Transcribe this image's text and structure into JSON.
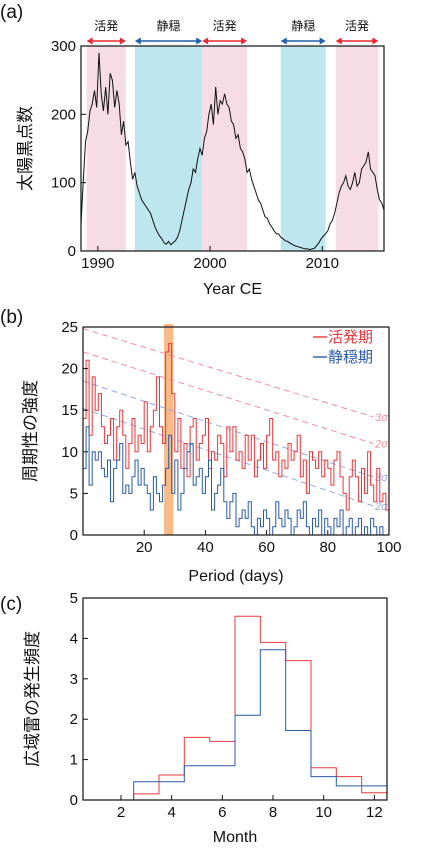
{
  "chart_data": [
    {
      "panel_label": "(a)",
      "type": "line",
      "xlabel": "Year CE",
      "ylabel": "太陽黒点数",
      "xlim": [
        1988.5,
        2015.5
      ],
      "ylim": [
        0,
        300
      ],
      "xticks": [
        1990,
        2000,
        2010
      ],
      "yticks": [
        0,
        100,
        200,
        300
      ],
      "tick_labels_x": [
        "1990",
        "2000",
        "2010"
      ],
      "tick_labels_y": [
        "0",
        "100",
        "200",
        "300"
      ],
      "series": [
        {
          "x": [
            1988.5,
            1988.7,
            1988.9,
            1989.1,
            1989.3,
            1989.5,
            1989.7,
            1989.9,
            1990.1,
            1990.3,
            1990.5,
            1990.7,
            1990.9,
            1991.1,
            1991.3,
            1991.5,
            1991.7,
            1991.9,
            1992.1,
            1992.3,
            1992.5,
            1992.7,
            1992.9,
            1993.1,
            1993.3,
            1993.5,
            1993.7,
            1993.9,
            1994.1,
            1994.3,
            1994.5,
            1994.7,
            1994.9,
            1995.1,
            1995.3,
            1995.5,
            1995.7,
            1995.9,
            1996.1,
            1996.3,
            1996.5,
            1996.7,
            1996.9,
            1997.1,
            1997.3,
            1997.5,
            1997.7,
            1997.9,
            1998.1,
            1998.3,
            1998.5,
            1998.7,
            1998.9,
            1999.1,
            1999.3,
            1999.5,
            1999.7,
            1999.9,
            2000.1,
            2000.3,
            2000.5,
            2000.7,
            2000.9,
            2001.1,
            2001.3,
            2001.5,
            2001.7,
            2001.9,
            2002.1,
            2002.3,
            2002.5,
            2002.7,
            2002.9,
            2003.1,
            2003.3,
            2003.5,
            2003.7,
            2003.9,
            2004.1,
            2004.3,
            2004.5,
            2004.7,
            2004.9,
            2005.1,
            2005.3,
            2005.5,
            2005.7,
            2005.9,
            2006.1,
            2006.3,
            2006.5,
            2006.7,
            2006.9,
            2007.1,
            2007.3,
            2007.5,
            2007.7,
            2007.9,
            2008.1,
            2008.3,
            2008.5,
            2008.7,
            2008.9,
            2009.1,
            2009.3,
            2009.5,
            2009.7,
            2009.9,
            2010.1,
            2010.3,
            2010.5,
            2010.7,
            2010.9,
            2011.1,
            2011.3,
            2011.5,
            2011.7,
            2011.9,
            2012.1,
            2012.3,
            2012.5,
            2012.7,
            2012.9,
            2013.1,
            2013.3,
            2013.5,
            2013.7,
            2013.9,
            2014.1,
            2014.3,
            2014.5,
            2014.7,
            2014.9,
            2015.1,
            2015.3,
            2015.5
          ],
          "values": [
            40,
            100,
            160,
            175,
            205,
            215,
            235,
            210,
            290,
            230,
            205,
            240,
            200,
            260,
            250,
            210,
            235,
            215,
            170,
            190,
            155,
            160,
            130,
            105,
            115,
            95,
            85,
            75,
            70,
            65,
            60,
            55,
            45,
            35,
            28,
            22,
            18,
            12,
            10,
            14,
            9,
            12,
            15,
            20,
            30,
            45,
            60,
            75,
            90,
            100,
            120,
            115,
            135,
            150,
            140,
            165,
            175,
            200,
            215,
            185,
            240,
            200,
            220,
            215,
            230,
            215,
            210,
            190,
            185,
            165,
            170,
            150,
            145,
            135,
            115,
            120,
            105,
            95,
            85,
            75,
            70,
            60,
            50,
            48,
            40,
            35,
            30,
            25,
            25,
            20,
            18,
            15,
            14,
            12,
            10,
            8,
            7,
            6,
            5,
            4,
            3,
            3,
            2,
            3,
            4,
            8,
            12,
            18,
            22,
            25,
            30,
            40,
            45,
            55,
            70,
            85,
            95,
            100,
            110,
            95,
            90,
            100,
            115,
            95,
            100,
            120,
            125,
            130,
            145,
            120,
            115,
            110,
            90,
            75,
            70,
            60
          ]
        }
      ],
      "bands": [
        {
          "label": "活発",
          "start": 1989.0,
          "end": 1992.5,
          "color": "#f5dce5",
          "arrow_color": "#e8292f"
        },
        {
          "label": "静穏",
          "start": 1993.3,
          "end": 1999.3,
          "color": "#bee6ee",
          "arrow_color": "#1f5fab"
        },
        {
          "label": "活発",
          "start": 1999.3,
          "end": 2003.3,
          "color": "#f5dce5",
          "arrow_color": "#e8292f"
        },
        {
          "label": "静穏",
          "start": 2006.3,
          "end": 2010.3,
          "color": "#bee6ee",
          "arrow_color": "#1f5fab"
        },
        {
          "label": "活発",
          "start": 2011.2,
          "end": 2015.0,
          "color": "#f5dce5",
          "arrow_color": "#e8292f"
        }
      ]
    },
    {
      "panel_label": "(b)",
      "type": "line",
      "xlabel": "Period (days)",
      "ylabel": "周期性の強度",
      "xlim": [
        0,
        100
      ],
      "ylim": [
        0,
        25
      ],
      "xticks": [
        20,
        40,
        60,
        80,
        100
      ],
      "yticks": [
        0,
        5,
        10,
        15,
        20,
        25
      ],
      "tick_labels_x": [
        "20",
        "40",
        "60",
        "80",
        "100"
      ],
      "tick_labels_y": [
        "0",
        "5",
        "10",
        "15",
        "20",
        "25"
      ],
      "highlight": {
        "start": 26.5,
        "end": 29.5,
        "color": "#f7b27a"
      },
      "legend_position": "top-right",
      "series": [
        {
          "name": "活発期",
          "color": "#e8383d",
          "x_step": 1,
          "values": [
            14,
            21,
            12,
            19,
            15,
            17,
            13,
            11,
            12,
            14,
            9,
            13,
            15,
            12,
            8,
            11,
            14,
            10,
            12,
            11,
            16,
            10,
            13,
            15,
            19,
            13,
            11,
            22,
            23,
            17,
            10,
            14,
            8,
            11,
            7,
            13,
            14,
            9,
            11,
            12,
            14,
            8,
            10,
            9,
            12,
            11,
            7,
            13,
            10,
            13,
            9,
            10,
            8,
            12,
            9,
            12,
            7,
            9,
            11,
            8,
            12,
            14,
            9,
            10,
            7,
            9,
            8,
            11,
            9,
            10,
            12,
            7,
            9,
            5,
            10,
            9,
            8,
            10,
            7,
            9,
            8,
            6,
            9,
            10,
            7,
            5,
            3,
            7,
            9,
            7,
            4,
            8,
            5,
            10,
            6,
            4,
            8,
            4,
            5,
            3
          ]
        },
        {
          "name": "静穏期",
          "color": "#2a5aa8",
          "x_step": 1,
          "values": [
            8,
            13,
            6,
            10,
            9,
            10,
            8,
            7,
            9,
            4,
            8,
            9,
            11,
            5,
            6,
            5,
            7,
            9,
            6,
            8,
            6,
            5,
            3,
            7,
            5,
            4,
            6,
            8,
            12,
            5,
            9,
            3,
            5,
            8,
            10,
            11,
            6,
            7,
            8,
            5,
            7,
            9,
            3,
            5,
            6,
            8,
            4,
            2,
            4,
            5,
            1,
            2,
            3,
            2,
            4,
            1,
            0,
            2,
            1,
            3,
            2,
            0,
            1,
            4,
            2,
            1,
            3,
            2,
            0,
            1,
            3,
            2,
            4,
            1,
            0,
            2,
            1,
            3,
            0,
            2,
            1,
            0,
            2,
            1,
            3,
            0,
            1,
            2,
            0,
            1,
            2,
            0,
            1,
            0,
            2,
            1,
            0,
            1,
            0,
            0
          ]
        }
      ],
      "thresholds": [
        {
          "label": "3σ",
          "group": "活発期",
          "y_start": 24.8,
          "y_end": 14.2,
          "color": "#ee8fa0"
        },
        {
          "label": "2σ",
          "group": "活発期",
          "y_start": 22.0,
          "y_end": 11.0,
          "color": "#ee8fa0"
        },
        {
          "label": "3σ",
          "group": "静穏期",
          "y_start": 18.5,
          "y_end": 7.0,
          "color": "#94a9dc"
        },
        {
          "label": "2σ",
          "group": "静穏期",
          "y_start": 15.2,
          "y_end": 3.5,
          "color": "#94a9dc"
        }
      ]
    },
    {
      "panel_label": "(c)",
      "type": "line",
      "xlabel": "Month",
      "ylabel": "広域雷の発生頻度",
      "xlim": [
        0.5,
        12.5
      ],
      "ylim": [
        0,
        5
      ],
      "xticks": [
        2,
        4,
        6,
        8,
        10,
        12
      ],
      "yticks": [
        0,
        1,
        2,
        3,
        4,
        5
      ],
      "tick_labels_x": [
        "2",
        "4",
        "6",
        "8",
        "10",
        "12"
      ],
      "tick_labels_y": [
        "0",
        "1",
        "2",
        "3",
        "4",
        "5"
      ],
      "categories": [
        1,
        2,
        3,
        4,
        5,
        6,
        7,
        8,
        9,
        10,
        11,
        12
      ],
      "series": [
        {
          "color": "#e8383d",
          "values": [
            0,
            0,
            0.15,
            0.62,
            1.55,
            1.45,
            4.55,
            3.9,
            3.45,
            0.8,
            0.58,
            0.18
          ]
        },
        {
          "color": "#2a5aa8",
          "values": [
            0,
            0,
            0.45,
            0.45,
            0.85,
            0.85,
            2.1,
            3.72,
            1.72,
            0.58,
            0.35,
            0.35
          ]
        }
      ]
    }
  ]
}
